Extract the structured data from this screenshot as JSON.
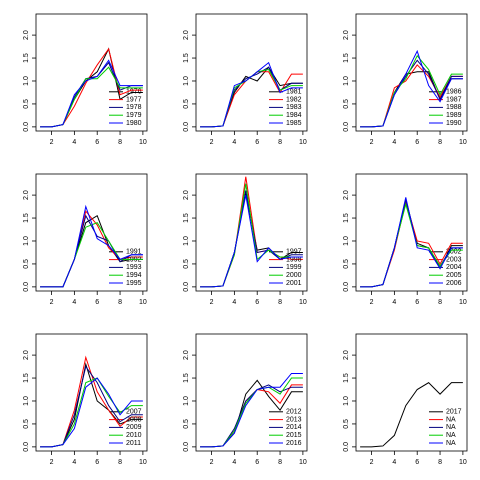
{
  "chart_data": [
    {
      "type": "line",
      "x": [
        1,
        2,
        3,
        4,
        5,
        6,
        7,
        8,
        9,
        10
      ],
      "xlim": [
        0.64,
        10.36
      ],
      "xticks": [
        2,
        4,
        6,
        8,
        10
      ],
      "ylim": [
        -0.09,
        2.46
      ],
      "yticks": [
        {
          "value": 0,
          "label": "0.0"
        },
        {
          "value": 0.5,
          "label": "0.5"
        },
        {
          "value": 1,
          "label": "1.0"
        },
        {
          "value": 1.5,
          "label": "1.5"
        },
        {
          "value": 2,
          "label": "2.0"
        }
      ],
      "legend": "bottomright",
      "series": [
        {
          "name": "1976",
          "color": "#000000",
          "values": [
            0,
            0,
            0.05,
            0.6,
            1.0,
            1.2,
            1.7,
            0.6,
            0.75,
            0.75
          ]
        },
        {
          "name": "1977",
          "color": "#ff0000",
          "values": [
            0,
            0,
            0.05,
            0.45,
            0.95,
            1.35,
            1.7,
            0.7,
            0.8,
            0.8
          ]
        },
        {
          "name": "1978",
          "color": "#000080",
          "values": [
            0,
            0,
            0.05,
            0.65,
            1.05,
            1.1,
            1.4,
            0.8,
            0.9,
            0.9
          ]
        },
        {
          "name": "1979",
          "color": "#00cd00",
          "values": [
            0,
            0,
            0.05,
            0.6,
            1.05,
            1.05,
            1.3,
            0.85,
            0.85,
            0.85
          ]
        },
        {
          "name": "1980",
          "color": "#0000ff",
          "values": [
            0,
            0,
            0.05,
            0.7,
            1.0,
            1.1,
            1.45,
            0.9,
            0.9,
            0.9
          ]
        }
      ]
    },
    {
      "type": "line",
      "x": [
        1,
        2,
        3,
        4,
        5,
        6,
        7,
        8,
        9,
        10
      ],
      "xlim": [
        0.64,
        10.36
      ],
      "xticks": [
        2,
        4,
        6,
        8,
        10
      ],
      "ylim": [
        -0.09,
        2.46
      ],
      "yticks": [
        {
          "value": 0,
          "label": "0.0"
        },
        {
          "value": 0.5,
          "label": "0.5"
        },
        {
          "value": 1,
          "label": "1.0"
        },
        {
          "value": 1.5,
          "label": "1.5"
        },
        {
          "value": 2,
          "label": "2.0"
        }
      ],
      "legend": "bottomright",
      "series": [
        {
          "name": "1981",
          "color": "#000000",
          "values": [
            0,
            0,
            0.02,
            0.75,
            1.1,
            1.0,
            1.3,
            0.9,
            0.95,
            0.95
          ]
        },
        {
          "name": "1982",
          "color": "#ff0000",
          "values": [
            0,
            0,
            0.02,
            0.7,
            1.0,
            1.2,
            1.2,
            0.75,
            1.15,
            1.15
          ]
        },
        {
          "name": "1983",
          "color": "#000080",
          "values": [
            0,
            0,
            0.02,
            0.8,
            1.05,
            1.15,
            1.3,
            0.8,
            0.95,
            0.95
          ]
        },
        {
          "name": "1984",
          "color": "#00cd00",
          "values": [
            0,
            0,
            0.02,
            0.85,
            1.0,
            1.2,
            1.25,
            0.8,
            0.9,
            0.9
          ]
        },
        {
          "name": "1985",
          "color": "#0000ff",
          "values": [
            0,
            0,
            0.02,
            0.9,
            1.0,
            1.2,
            1.4,
            0.75,
            0.85,
            0.85
          ]
        }
      ]
    },
    {
      "type": "line",
      "x": [
        1,
        2,
        3,
        4,
        5,
        6,
        7,
        8,
        9,
        10
      ],
      "xlim": [
        0.64,
        10.36
      ],
      "xticks": [
        2,
        4,
        6,
        8,
        10
      ],
      "ylim": [
        -0.09,
        2.46
      ],
      "yticks": [
        {
          "value": 0,
          "label": "0.0"
        },
        {
          "value": 0.5,
          "label": "0.5"
        },
        {
          "value": 1,
          "label": "1.0"
        },
        {
          "value": 1.5,
          "label": "1.5"
        },
        {
          "value": 2,
          "label": "2.0"
        }
      ],
      "legend": "bottomright",
      "series": [
        {
          "name": "1986",
          "color": "#000000",
          "values": [
            0,
            0,
            0.02,
            0.75,
            1.15,
            1.2,
            1.2,
            0.6,
            1.05,
            1.05
          ]
        },
        {
          "name": "1987",
          "color": "#ff0000",
          "values": [
            0,
            0,
            0.02,
            0.85,
            1.0,
            1.35,
            1.1,
            0.65,
            1.1,
            1.1
          ]
        },
        {
          "name": "1988",
          "color": "#000080",
          "values": [
            0,
            0,
            0.02,
            0.7,
            1.1,
            1.45,
            1.15,
            0.6,
            1.1,
            1.1
          ]
        },
        {
          "name": "1989",
          "color": "#00cd00",
          "values": [
            0,
            0,
            0.02,
            0.75,
            1.05,
            1.55,
            1.25,
            0.7,
            1.15,
            1.15
          ]
        },
        {
          "name": "1990",
          "color": "#0000ff",
          "values": [
            0,
            0,
            0.02,
            0.7,
            1.15,
            1.65,
            0.9,
            0.55,
            1.05,
            1.05
          ]
        }
      ]
    },
    {
      "type": "line",
      "x": [
        1,
        2,
        3,
        4,
        5,
        6,
        7,
        8,
        9,
        10
      ],
      "xlim": [
        0.64,
        10.36
      ],
      "xticks": [
        2,
        4,
        6,
        8,
        10
      ],
      "ylim": [
        -0.09,
        2.46
      ],
      "yticks": [
        {
          "value": 0,
          "label": "0.0"
        },
        {
          "value": 0.5,
          "label": "0.5"
        },
        {
          "value": 1,
          "label": "1.0"
        },
        {
          "value": 1.5,
          "label": "1.5"
        },
        {
          "value": 2,
          "label": "2.0"
        }
      ],
      "legend": "bottomright",
      "series": [
        {
          "name": "1991",
          "color": "#000000",
          "values": [
            0,
            0,
            0,
            0.6,
            1.4,
            1.55,
            0.9,
            0.55,
            0.6,
            0.6
          ]
        },
        {
          "name": "1992",
          "color": "#ff0000",
          "values": [
            0,
            0,
            0,
            0.6,
            1.65,
            1.35,
            0.85,
            0.6,
            0.65,
            0.65
          ]
        },
        {
          "name": "1993",
          "color": "#000080",
          "values": [
            0,
            0,
            0,
            0.6,
            1.55,
            1.1,
            1.0,
            0.55,
            0.7,
            0.7
          ]
        },
        {
          "name": "1994",
          "color": "#00cd00",
          "values": [
            0,
            0,
            0,
            0.6,
            1.3,
            1.4,
            1.0,
            0.6,
            0.6,
            0.6
          ]
        },
        {
          "name": "1995",
          "color": "#0000ff",
          "values": [
            0,
            0,
            0,
            0.6,
            1.75,
            1.05,
            0.9,
            0.6,
            0.7,
            0.7
          ]
        }
      ]
    },
    {
      "type": "line",
      "x": [
        1,
        2,
        3,
        4,
        5,
        6,
        7,
        8,
        9,
        10
      ],
      "xlim": [
        0.64,
        10.36
      ],
      "xticks": [
        2,
        4,
        6,
        8,
        10
      ],
      "ylim": [
        -0.09,
        2.46
      ],
      "yticks": [
        {
          "value": 0,
          "label": "0.0"
        },
        {
          "value": 0.5,
          "label": "0.5"
        },
        {
          "value": 1,
          "label": "1.0"
        },
        {
          "value": 1.5,
          "label": "1.5"
        },
        {
          "value": 2,
          "label": "2.0"
        }
      ],
      "legend": "bottomright",
      "series": [
        {
          "name": "1997",
          "color": "#000000",
          "values": [
            0,
            0,
            0.02,
            0.75,
            2.05,
            0.8,
            0.85,
            0.6,
            0.75,
            0.75
          ]
        },
        {
          "name": "1998",
          "color": "#ff0000",
          "values": [
            0,
            0,
            0.02,
            0.7,
            2.4,
            0.75,
            0.8,
            0.65,
            0.6,
            0.6
          ]
        },
        {
          "name": "1999",
          "color": "#000080",
          "values": [
            0,
            0,
            0.02,
            0.75,
            2.1,
            0.75,
            0.8,
            0.6,
            0.7,
            0.7
          ]
        },
        {
          "name": "2000",
          "color": "#00cd00",
          "values": [
            0,
            0,
            0.02,
            0.7,
            2.25,
            0.6,
            0.8,
            0.65,
            0.65,
            0.65
          ]
        },
        {
          "name": "2001",
          "color": "#0000ff",
          "values": [
            0,
            0,
            0.02,
            0.75,
            2.0,
            0.55,
            0.85,
            0.6,
            0.65,
            0.65
          ]
        }
      ]
    },
    {
      "type": "line",
      "x": [
        1,
        2,
        3,
        4,
        5,
        6,
        7,
        8,
        9,
        10
      ],
      "xlim": [
        0.64,
        10.36
      ],
      "xticks": [
        2,
        4,
        6,
        8,
        10
      ],
      "ylim": [
        -0.09,
        2.46
      ],
      "yticks": [
        {
          "value": 0,
          "label": "0.0"
        },
        {
          "value": 0.5,
          "label": "0.5"
        },
        {
          "value": 1,
          "label": "1.0"
        },
        {
          "value": 1.5,
          "label": "1.5"
        },
        {
          "value": 2,
          "label": "2.0"
        }
      ],
      "legend": "bottomright",
      "series": [
        {
          "name": "2002",
          "color": "#000000",
          "values": [
            0,
            0,
            0.05,
            0.85,
            1.9,
            0.95,
            0.85,
            0.4,
            0.9,
            0.9
          ]
        },
        {
          "name": "2003",
          "color": "#ff0000",
          "values": [
            0,
            0,
            0.05,
            0.8,
            1.85,
            1.0,
            0.95,
            0.5,
            0.95,
            0.95
          ]
        },
        {
          "name": "2004",
          "color": "#000080",
          "values": [
            0,
            0,
            0.05,
            0.85,
            1.9,
            0.9,
            0.85,
            0.45,
            0.85,
            0.85
          ]
        },
        {
          "name": "2005",
          "color": "#00cd00",
          "values": [
            0,
            0,
            0.05,
            0.85,
            1.8,
            0.9,
            0.85,
            0.45,
            0.8,
            0.8
          ]
        },
        {
          "name": "2006",
          "color": "#0000ff",
          "values": [
            0,
            0,
            0.05,
            0.85,
            1.95,
            0.85,
            0.8,
            0.4,
            0.85,
            0.85
          ]
        }
      ]
    },
    {
      "type": "line",
      "x": [
        1,
        2,
        3,
        4,
        5,
        6,
        7,
        8,
        9,
        10
      ],
      "xlim": [
        0.64,
        10.36
      ],
      "xticks": [
        2,
        4,
        6,
        8,
        10
      ],
      "ylim": [
        -0.09,
        2.46
      ],
      "yticks": [
        {
          "value": 0,
          "label": "0.0"
        },
        {
          "value": 0.5,
          "label": "0.5"
        },
        {
          "value": 1,
          "label": "1.0"
        },
        {
          "value": 1.5,
          "label": "1.5"
        },
        {
          "value": 2,
          "label": "2.0"
        }
      ],
      "legend": "bottomright",
      "series": [
        {
          "name": "2007",
          "color": "#000000",
          "values": [
            0,
            0,
            0.05,
            0.6,
            1.8,
            1.0,
            0.8,
            0.5,
            0.6,
            0.6
          ]
        },
        {
          "name": "2008",
          "color": "#ff0000",
          "values": [
            0,
            0,
            0.05,
            0.8,
            1.95,
            1.2,
            0.8,
            0.45,
            0.65,
            0.65
          ]
        },
        {
          "name": "2009",
          "color": "#000080",
          "values": [
            0,
            0,
            0.05,
            0.7,
            1.75,
            1.4,
            0.9,
            0.55,
            0.7,
            0.7
          ]
        },
        {
          "name": "2010",
          "color": "#00cd00",
          "values": [
            0,
            0,
            0.05,
            0.5,
            1.4,
            1.5,
            1.1,
            0.75,
            0.9,
            0.9
          ]
        },
        {
          "name": "2011",
          "color": "#0000ff",
          "values": [
            0,
            0,
            0.05,
            0.4,
            1.3,
            1.5,
            1.15,
            0.7,
            1.0,
            1.0
          ]
        }
      ]
    },
    {
      "type": "line",
      "x": [
        1,
        2,
        3,
        4,
        5,
        6,
        7,
        8,
        9,
        10
      ],
      "xlim": [
        0.64,
        10.36
      ],
      "xticks": [
        2,
        4,
        6,
        8,
        10
      ],
      "ylim": [
        -0.09,
        2.46
      ],
      "yticks": [
        {
          "value": 0,
          "label": "0.0"
        },
        {
          "value": 0.5,
          "label": "0.5"
        },
        {
          "value": 1,
          "label": "1.0"
        },
        {
          "value": 1.5,
          "label": "1.5"
        },
        {
          "value": 2,
          "label": "2.0"
        }
      ],
      "legend": "bottomright",
      "series": [
        {
          "name": "2012",
          "color": "#000000",
          "values": [
            0,
            0,
            0.02,
            0.3,
            1.15,
            1.45,
            1.1,
            0.8,
            1.2,
            1.2
          ]
        },
        {
          "name": "2013",
          "color": "#ff0000",
          "values": [
            0,
            0,
            0.02,
            0.35,
            1.0,
            1.25,
            1.2,
            0.95,
            1.35,
            1.35
          ]
        },
        {
          "name": "2014",
          "color": "#000080",
          "values": [
            0,
            0,
            0.02,
            0.4,
            1.0,
            1.25,
            1.35,
            1.2,
            1.3,
            1.3
          ]
        },
        {
          "name": "2015",
          "color": "#00cd00",
          "values": [
            0,
            0,
            0.02,
            0.35,
            0.95,
            1.25,
            1.3,
            1.15,
            1.5,
            1.5
          ]
        },
        {
          "name": "2016",
          "color": "#0000ff",
          "values": [
            0,
            0,
            0.02,
            0.3,
            0.9,
            1.25,
            1.3,
            1.3,
            1.6,
            1.6
          ]
        }
      ]
    },
    {
      "type": "line",
      "x": [
        1,
        2,
        3,
        4,
        5,
        6,
        7,
        8,
        9,
        10
      ],
      "xlim": [
        0.64,
        10.36
      ],
      "xticks": [
        2,
        4,
        6,
        8,
        10
      ],
      "ylim": [
        -0.09,
        2.46
      ],
      "yticks": [
        {
          "value": 0,
          "label": "0.0"
        },
        {
          "value": 0.5,
          "label": "0.5"
        },
        {
          "value": 1,
          "label": "1.0"
        },
        {
          "value": 1.5,
          "label": "1.5"
        },
        {
          "value": 2,
          "label": "2.0"
        }
      ],
      "legend": "bottomright",
      "series": [
        {
          "name": "2017",
          "color": "#000000",
          "values": [
            0,
            0,
            0.02,
            0.25,
            0.9,
            1.25,
            1.4,
            1.15,
            1.4,
            1.4
          ]
        },
        {
          "name": "NA",
          "color": "#ff0000",
          "values": [
            null,
            null,
            null,
            null,
            null,
            null,
            null,
            null,
            null,
            null
          ]
        },
        {
          "name": "NA",
          "color": "#000080",
          "values": [
            null,
            null,
            null,
            null,
            null,
            null,
            null,
            null,
            null,
            null
          ]
        },
        {
          "name": "NA",
          "color": "#00cd00",
          "values": [
            null,
            null,
            null,
            null,
            null,
            null,
            null,
            null,
            null,
            null
          ]
        },
        {
          "name": "NA",
          "color": "#0000ff",
          "values": [
            null,
            null,
            null,
            null,
            null,
            null,
            null,
            null,
            null,
            null
          ]
        }
      ]
    }
  ]
}
